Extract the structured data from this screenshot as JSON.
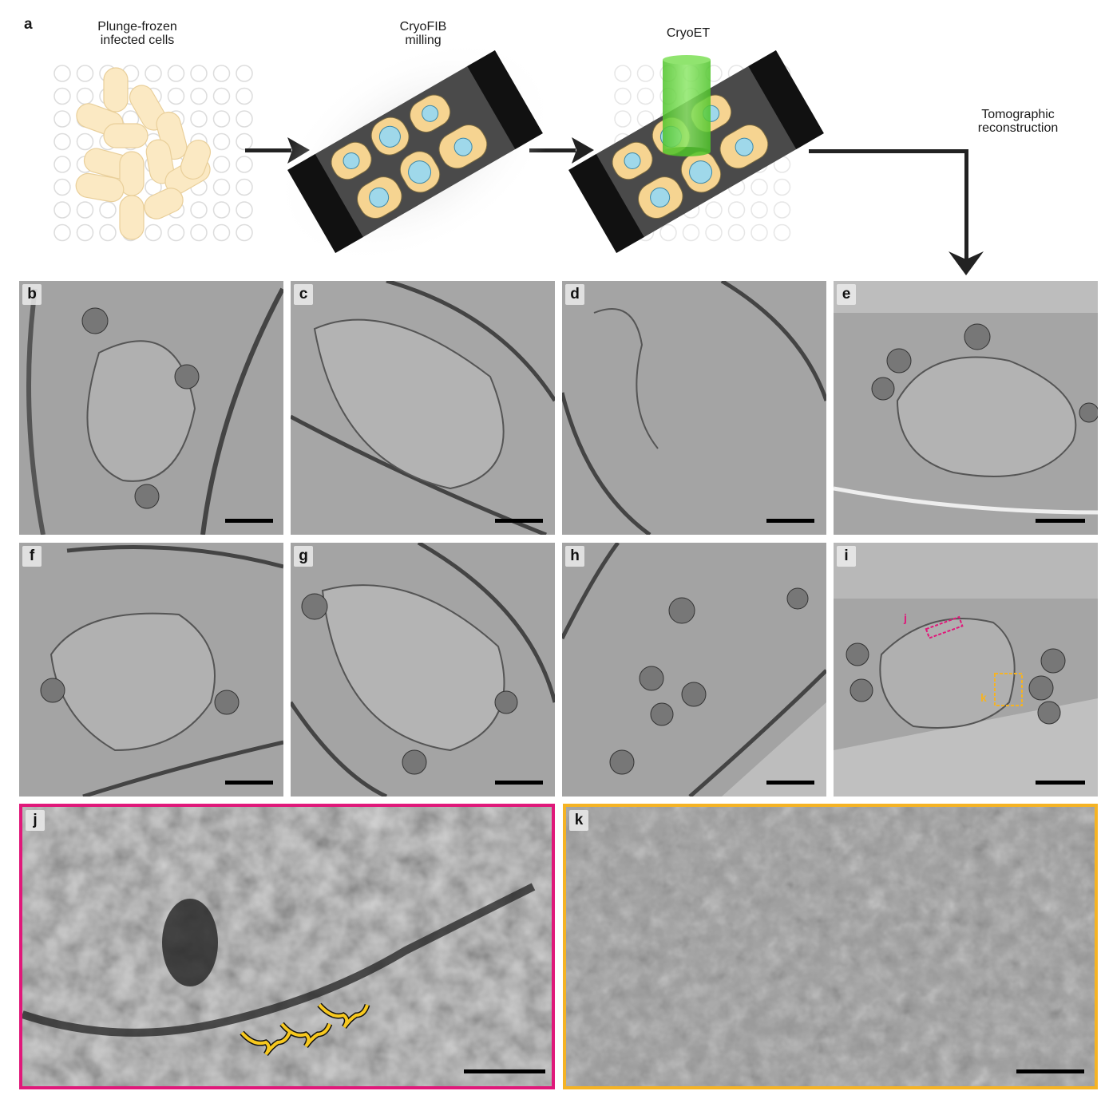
{
  "figure": {
    "panel_a": {
      "label": "a",
      "steps": [
        {
          "line1": "Plunge-frozen",
          "line2": "infected cells"
        },
        {
          "line1": "CryoFIB",
          "line2": "milling"
        },
        {
          "line1": "CryoET",
          "line2": ""
        },
        {
          "line1": "Tomographic",
          "line2": "reconstruction"
        }
      ]
    },
    "tomograms": [
      "b",
      "c",
      "d",
      "e",
      "f",
      "g",
      "h",
      "i"
    ],
    "inset_labels": {
      "j_marker": "j",
      "k_marker": "k"
    },
    "zooms": [
      {
        "label": "j",
        "border_color": "#e0187a"
      },
      {
        "label": "k",
        "border_color": "#f5b324"
      }
    ],
    "colors": {
      "magenta": "#e0187a",
      "orange": "#f5b324",
      "yellow_brace": "#f7c81e",
      "beam": "#5ed12f"
    }
  }
}
